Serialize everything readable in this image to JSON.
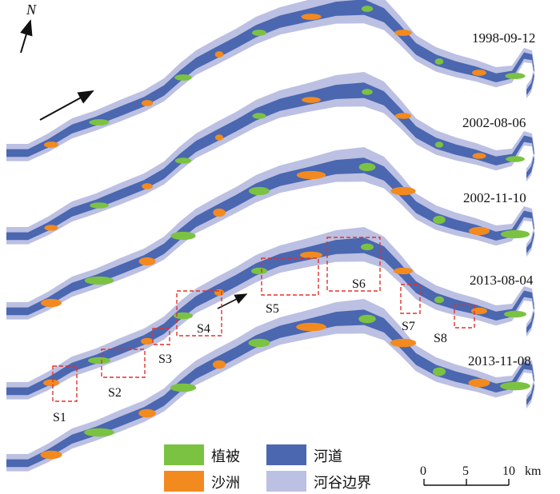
{
  "colors": {
    "vegetation": "#7cc242",
    "sandbar": "#f28a1f",
    "channel": "#4a67b0",
    "valley_boundary": "#bcc0e2",
    "site_box": "#e0322b"
  },
  "north_label": "N",
  "dates": [
    "1998-09-12",
    "2002-08-06",
    "2002-11-10",
    "2013-08-04",
    "2013-11-08"
  ],
  "sites": [
    "S1",
    "S2",
    "S3",
    "S4",
    "S5",
    "S6",
    "S7",
    "S8"
  ],
  "legend": {
    "vegetation": "植被",
    "channel": "河道",
    "sandbar": "沙洲",
    "valley_boundary": "河谷边界"
  },
  "scale": {
    "ticks": [
      "0",
      "5",
      "10"
    ],
    "unit": "km"
  }
}
